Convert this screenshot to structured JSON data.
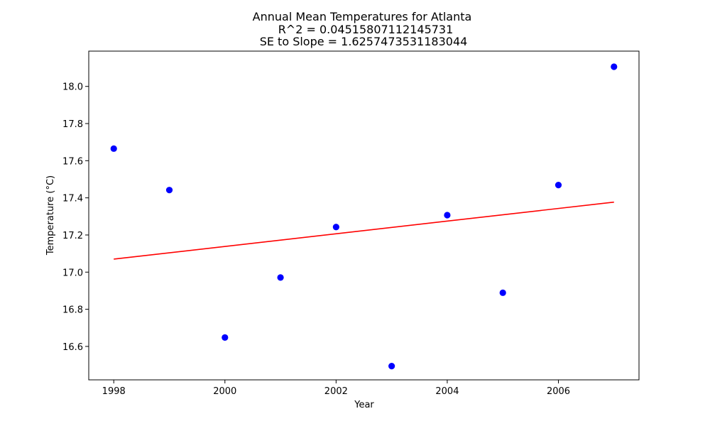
{
  "chart_data": {
    "type": "scatter",
    "title_lines": [
      "Annual Mean Temperatures for Atlanta",
      "R^2 = 0.045158071121457​31",
      "SE to Slope = 1.6257473531183044"
    ],
    "xlabel": "Year",
    "ylabel": "Temperature (°C)",
    "xlim": [
      1997.55,
      2007.45
    ],
    "ylim": [
      16.42,
      18.19
    ],
    "x_ticks": [
      1998,
      2000,
      2002,
      2004,
      2006
    ],
    "y_ticks": [
      16.6,
      16.8,
      17.0,
      17.2,
      17.4,
      17.6,
      17.8,
      18.0
    ],
    "x_tick_labels": [
      "1998",
      "2000",
      "2002",
      "2004",
      "2006"
    ],
    "y_tick_labels": [
      "16.6",
      "16.8",
      "17.0",
      "17.2",
      "17.4",
      "17.6",
      "17.8",
      "18.0"
    ],
    "grid": false,
    "legend": "none",
    "series": [
      {
        "kind": "points",
        "color": "#0000ff",
        "x": [
          1998,
          1999,
          2000,
          2001,
          2002,
          2003,
          2004,
          2005,
          2006,
          2007
        ],
        "y": [
          17.665,
          17.442,
          16.648,
          16.971,
          17.243,
          16.494,
          17.307,
          16.889,
          17.469,
          18.106
        ]
      },
      {
        "kind": "fit_line",
        "color": "#ff0000",
        "x": [
          1998,
          2007
        ],
        "y": [
          17.07,
          17.377
        ]
      }
    ]
  }
}
